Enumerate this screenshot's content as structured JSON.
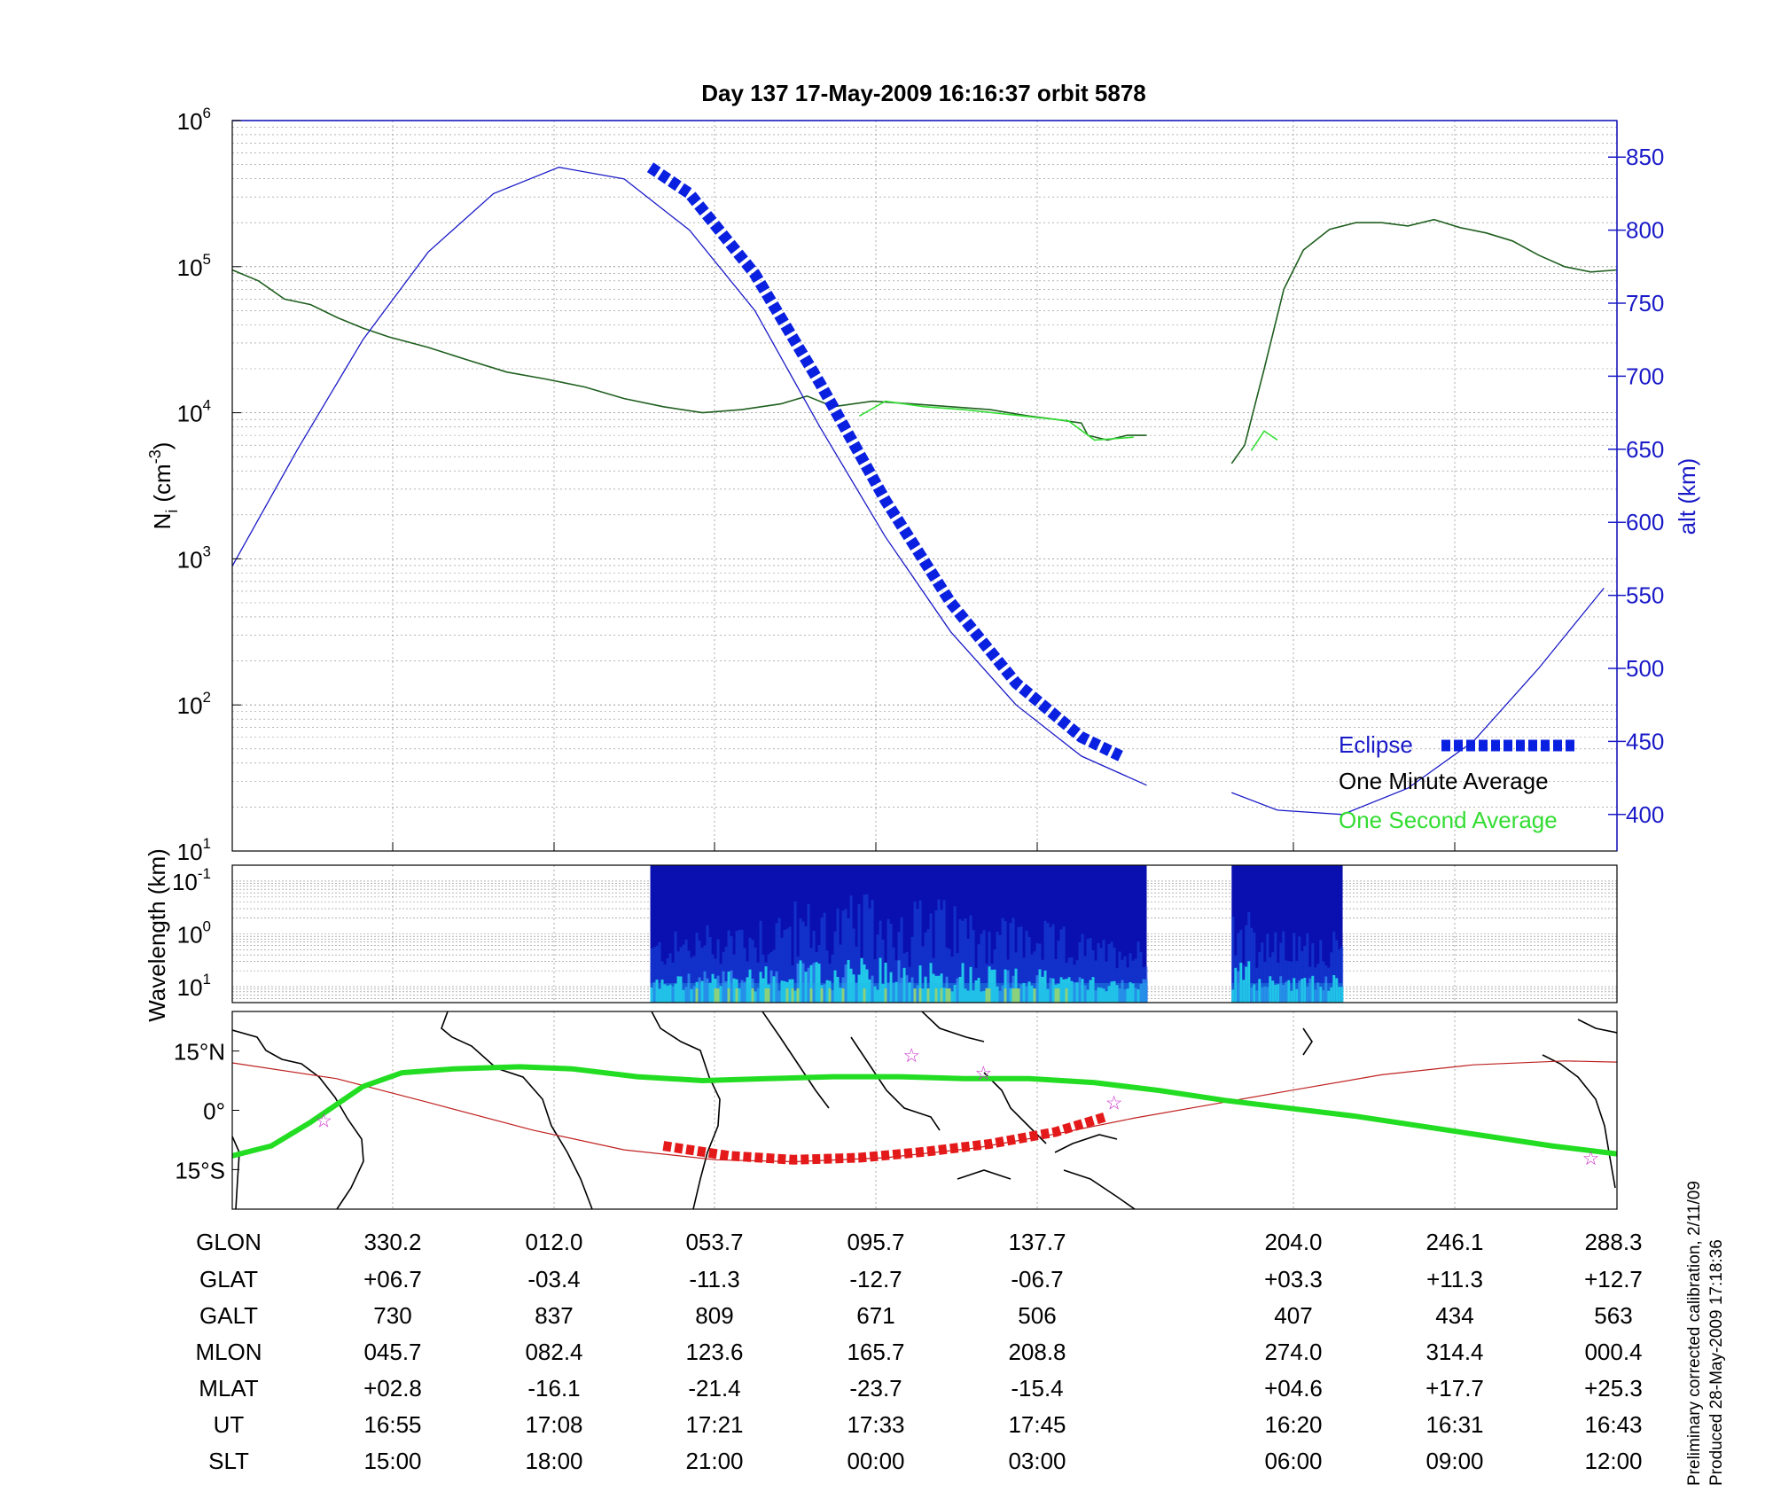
{
  "title": "Day 137  17-May-2009 16:16:37   orbit 5878",
  "colors": {
    "alt_line": "#1a1ac8",
    "avg_minute": "#1f5f1f",
    "avg_second": "#33dd33",
    "eclipse": "#0a20e0",
    "ground_track": "#22dd22",
    "magnetic_equator": "#c02020",
    "eclipse_track": "#e41a1a",
    "stars": "#cc33cc",
    "axis_right": "#1a1ac8"
  },
  "chart_data": [
    {
      "type": "line",
      "name": "density-panel",
      "ylabel": "N_i (cm^-3)",
      "ylabel_main": "N",
      "ylabel_sub": "i",
      "ylabel_unit": "(cm",
      "ylabel_unit_exp": "-3",
      "ylabel_close": ")",
      "yscale": "log",
      "ylim": [
        10,
        1000000
      ],
      "y_ticks": [
        {
          "value": 10,
          "base": "10",
          "exp": "1"
        },
        {
          "value": 100,
          "base": "10",
          "exp": "2"
        },
        {
          "value": 1000,
          "base": "10",
          "exp": "3"
        },
        {
          "value": 10000,
          "base": "10",
          "exp": "4"
        },
        {
          "value": 100000,
          "base": "10",
          "exp": "5"
        },
        {
          "value": 1000000,
          "base": "10",
          "exp": "6"
        }
      ],
      "y2label": "alt (km)",
      "y2lim": [
        375,
        875
      ],
      "y2_ticks": [
        400,
        450,
        500,
        550,
        600,
        650,
        700,
        750,
        800,
        850
      ],
      "grid": true,
      "x_index_range": [
        0,
        8.6
      ],
      "series": [
        {
          "name": "One Minute Average",
          "axis": "left",
          "segments": [
            [
              [
                0,
                95000
              ],
              [
                0.2,
                80000
              ],
              [
                0.4,
                60000
              ],
              [
                0.6,
                55000
              ],
              [
                0.8,
                45000
              ],
              [
                1.0,
                38000
              ],
              [
                1.2,
                33000
              ],
              [
                1.5,
                28000
              ],
              [
                1.8,
                23000
              ],
              [
                2.1,
                19000
              ],
              [
                2.4,
                17000
              ],
              [
                2.7,
                15000
              ],
              [
                3.0,
                12500
              ],
              [
                3.3,
                11000
              ],
              [
                3.6,
                10000
              ],
              [
                3.9,
                10500
              ],
              [
                4.2,
                11500
              ],
              [
                4.4,
                13000
              ],
              [
                4.6,
                11000
              ],
              [
                4.9,
                12000
              ],
              [
                5.2,
                11500
              ],
              [
                5.5,
                11000
              ],
              [
                5.8,
                10500
              ],
              [
                6.1,
                9500
              ],
              [
                6.3,
                9000
              ],
              [
                6.5,
                8500
              ],
              [
                6.55,
                7000
              ],
              [
                6.7,
                6500
              ],
              [
                6.85,
                7000
              ],
              [
                7.0,
                7000
              ]
            ],
            [
              [
                7.65,
                4500
              ],
              [
                7.75,
                6000
              ],
              [
                7.9,
                20000
              ],
              [
                8.05,
                70000
              ],
              [
                8.2,
                130000
              ],
              [
                8.4,
                180000
              ],
              [
                8.6,
                200000
              ],
              [
                8.8,
                200000
              ],
              [
                9.0,
                190000
              ],
              [
                9.2,
                210000
              ],
              [
                9.4,
                185000
              ],
              [
                9.6,
                170000
              ],
              [
                9.8,
                150000
              ],
              [
                10.0,
                120000
              ],
              [
                10.2,
                100000
              ],
              [
                10.4,
                92000
              ],
              [
                10.6,
                95000
              ]
            ]
          ]
        },
        {
          "name": "One Second Average",
          "axis": "left",
          "segments": [
            [
              [
                4.8,
                9500
              ],
              [
                5.0,
                12000
              ],
              [
                5.3,
                11000
              ],
              [
                5.6,
                10500
              ],
              [
                6.4,
                8800
              ],
              [
                6.6,
                6500
              ],
              [
                6.9,
                6800
              ]
            ],
            [
              [
                7.8,
                5500
              ],
              [
                7.9,
                7500
              ],
              [
                8.0,
                6500
              ]
            ]
          ]
        },
        {
          "name": "alt",
          "axis": "right",
          "segments": [
            [
              [
                0,
                570
              ],
              [
                0.5,
                650
              ],
              [
                1.0,
                725
              ],
              [
                1.5,
                785
              ],
              [
                2.0,
                825
              ],
              [
                2.5,
                843
              ],
              [
                3.0,
                835
              ],
              [
                3.5,
                800
              ],
              [
                4.0,
                745
              ],
              [
                4.5,
                665
              ],
              [
                5.0,
                590
              ],
              [
                5.5,
                525
              ],
              [
                6.0,
                475
              ],
              [
                6.5,
                440
              ],
              [
                7.0,
                420
              ]
            ],
            [
              [
                7.65,
                415
              ],
              [
                8.0,
                403
              ],
              [
                8.5,
                400
              ],
              [
                9.0,
                418
              ],
              [
                9.5,
                450
              ],
              [
                10.0,
                500
              ],
              [
                10.5,
                555
              ]
            ]
          ]
        },
        {
          "name": "Eclipse",
          "axis": "right",
          "segments": [
            [
              [
                3.2,
                843
              ],
              [
                3.5,
                825
              ],
              [
                4.0,
                770
              ],
              [
                4.5,
                695
              ],
              [
                5.0,
                615
              ],
              [
                5.5,
                545
              ],
              [
                6.0,
                490
              ],
              [
                6.5,
                453
              ],
              [
                6.8,
                440
              ]
            ]
          ]
        }
      ],
      "legend": {
        "placement": "bottom-right",
        "entries": [
          "Eclipse",
          "One Minute Average",
          "One Second Average"
        ]
      }
    },
    {
      "type": "heatmap",
      "name": "wavelength-panel",
      "ylabel": "Wavelength (km)",
      "yscale": "log",
      "ylim": [
        0.05,
        20
      ],
      "y_ticks": [
        {
          "value": 0.1,
          "base": "10",
          "exp": "-1"
        },
        {
          "value": 1,
          "base": "10",
          "exp": "0"
        },
        {
          "value": 10,
          "base": "10",
          "exp": "1"
        }
      ],
      "blocks": [
        [
          3.2,
          7.0
        ],
        [
          7.65,
          8.5
        ]
      ]
    },
    {
      "type": "map",
      "name": "ground-track-panel",
      "lat_ticks": [
        {
          "value": 15,
          "label": "15°N"
        },
        {
          "value": 0,
          "label": "0°"
        },
        {
          "value": -15,
          "label": "15°S"
        }
      ],
      "ylim": [
        -25,
        25
      ],
      "ground_track": [
        [
          0,
          -11.5
        ],
        [
          0.3,
          -9
        ],
        [
          0.6,
          -3
        ],
        [
          1.0,
          6
        ],
        [
          1.3,
          9.5
        ],
        [
          1.7,
          10.5
        ],
        [
          2.2,
          11
        ],
        [
          2.6,
          10.5
        ],
        [
          3.1,
          8.5
        ],
        [
          3.6,
          7.5
        ],
        [
          4.1,
          8
        ],
        [
          4.6,
          8.5
        ],
        [
          5.1,
          8.5
        ],
        [
          5.6,
          8
        ],
        [
          6.1,
          8
        ],
        [
          6.6,
          7
        ],
        [
          7.1,
          5
        ],
        [
          7.6,
          2.5
        ],
        [
          8.1,
          0.5
        ],
        [
          8.6,
          -1.5
        ],
        [
          9.1,
          -4
        ],
        [
          9.6,
          -6.5
        ],
        [
          10.1,
          -9
        ],
        [
          10.6,
          -11
        ]
      ],
      "magnetic_equator": [
        [
          0,
          12
        ],
        [
          0.8,
          8
        ],
        [
          1.5,
          2
        ],
        [
          2.3,
          -5
        ],
        [
          3.0,
          -10
        ],
        [
          3.7,
          -12.5
        ],
        [
          4.3,
          -13
        ],
        [
          5.0,
          -12
        ],
        [
          5.7,
          -9.5
        ],
        [
          6.3,
          -6
        ],
        [
          6.9,
          -2
        ],
        [
          7.5,
          1.5
        ],
        [
          8.1,
          5
        ],
        [
          8.8,
          9
        ],
        [
          9.5,
          11.5
        ],
        [
          10.2,
          12.5
        ],
        [
          10.6,
          12.2
        ]
      ],
      "eclipse_track": [
        [
          3.3,
          -9
        ],
        [
          3.8,
          -11.5
        ],
        [
          4.3,
          -12.5
        ],
        [
          4.8,
          -12
        ],
        [
          5.3,
          -10.5
        ],
        [
          5.8,
          -8.5
        ],
        [
          6.3,
          -5.5
        ],
        [
          6.7,
          -1.5
        ]
      ],
      "stars": [
        [
          0.7,
          -2.5
        ],
        [
          5.2,
          14
        ],
        [
          5.75,
          9.5
        ],
        [
          6.75,
          2
        ],
        [
          10.4,
          -12
        ]
      ]
    }
  ],
  "table": {
    "row_labels": [
      "GLON",
      "GLAT",
      "GALT",
      "MLON",
      "MLAT",
      "UT",
      "SLT"
    ],
    "columns": [
      [
        "330.2",
        "+06.7",
        "730",
        "045.7",
        "+02.8",
        "16:55",
        "15:00"
      ],
      [
        "012.0",
        "-03.4",
        "837",
        "082.4",
        "-16.1",
        "17:08",
        "18:00"
      ],
      [
        "053.7",
        "-11.3",
        "809",
        "123.6",
        "-21.4",
        "17:21",
        "21:00"
      ],
      [
        "095.7",
        "-12.7",
        "671",
        "165.7",
        "-23.7",
        "17:33",
        "00:00"
      ],
      [
        "137.7",
        "-06.7",
        "506",
        "208.8",
        "-15.4",
        "17:45",
        "03:00"
      ],
      [
        "204.0",
        "+03.3",
        "407",
        "274.0",
        "+04.6",
        "16:20",
        "06:00"
      ],
      [
        "246.1",
        "+11.3",
        "434",
        "314.4",
        "+17.7",
        "16:31",
        "09:00"
      ],
      [
        "288.3",
        "+12.7",
        "563",
        "000.4",
        "+25.3",
        "16:43",
        "12:00"
      ]
    ]
  },
  "footnote_line1": "Preliminary corrected calibration, 2/11/09",
  "footnote_line2": "Produced 28-May-2009 17:18:36"
}
